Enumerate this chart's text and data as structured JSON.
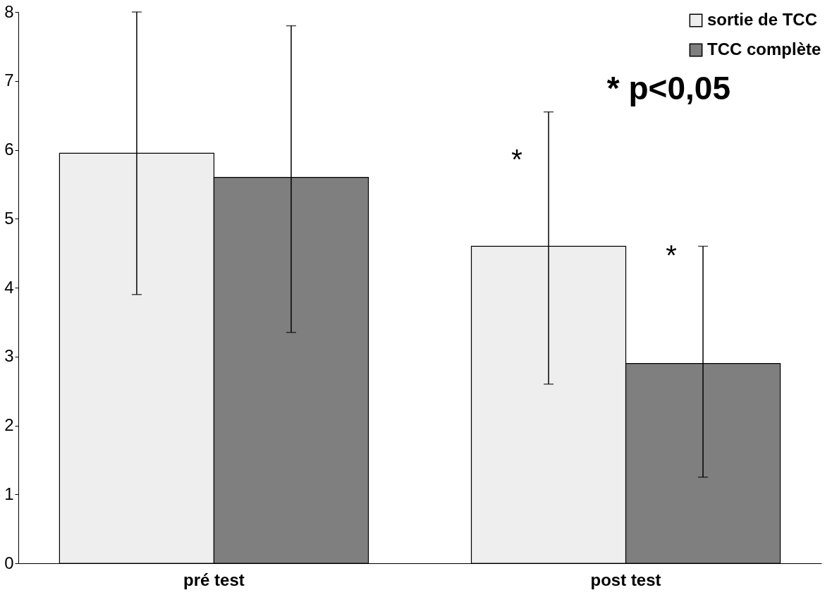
{
  "chart_data": {
    "type": "bar",
    "categories": [
      "pré test",
      "post test"
    ],
    "series": [
      {
        "name": "sortie de TCC",
        "color": "#eeeeee",
        "values": [
          5.95,
          4.6
        ],
        "errors": [
          [
            3.9,
            8.0
          ],
          [
            2.6,
            6.55
          ]
        ]
      },
      {
        "name": "TCC complète",
        "color": "#7f7f7f",
        "values": [
          5.6,
          2.9
        ],
        "errors": [
          [
            3.35,
            7.8
          ],
          [
            1.25,
            4.6
          ]
        ]
      }
    ],
    "ylim": [
      0,
      8
    ],
    "yticks": [
      0,
      1,
      2,
      3,
      4,
      5,
      6,
      7,
      8
    ],
    "grid": false,
    "legend": "top right",
    "annotations": [
      "*",
      "*",
      "* p<0,05"
    ]
  }
}
